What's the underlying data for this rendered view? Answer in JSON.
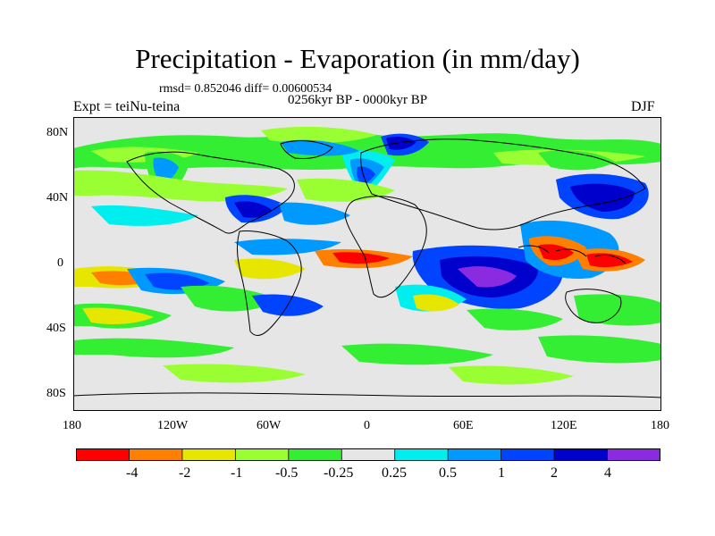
{
  "title": "Precipitation - Evaporation (in mm/day)",
  "stats": "rmsd= 0.852046 diff= 0.00600534",
  "period": "0256kyr BP - 0000kyr BP",
  "experiment": "Expt = teiNu-teina",
  "season": "DJF",
  "lat_ticks": [
    "80N",
    "40N",
    "0",
    "40S",
    "80S"
  ],
  "lon_ticks": [
    "180",
    "120W",
    "60W",
    "0",
    "60E",
    "120E",
    "180"
  ],
  "colorbar": {
    "labels": [
      "-4",
      "-2",
      "-1",
      "-0.5",
      "-0.25",
      "0.25",
      "0.5",
      "1",
      "2",
      "4"
    ],
    "colors": [
      "#ff0000",
      "#ff8000",
      "#e6e600",
      "#99ff33",
      "#33ee33",
      "#e6e6e6",
      "#00eeee",
      "#0099ff",
      "#0044ff",
      "#0000cc",
      "#8a2be2"
    ]
  },
  "palette": {
    "background": "#e6e6e6",
    "coast": "#000000"
  }
}
